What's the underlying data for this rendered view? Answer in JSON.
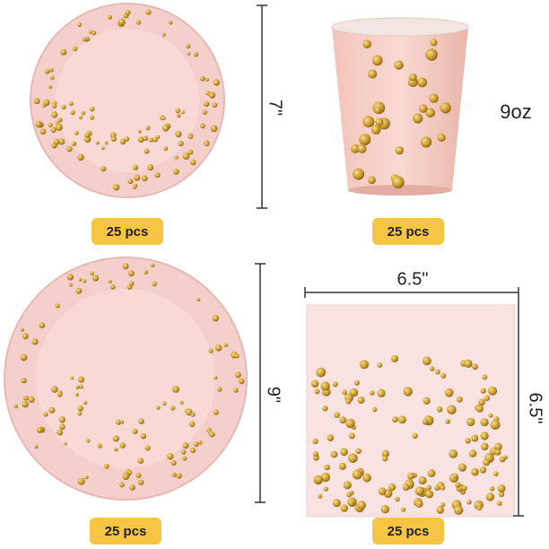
{
  "small_plate": {
    "size": "7\"",
    "count": "25 pcs"
  },
  "cup": {
    "size": "9oz",
    "count": "25 pcs"
  },
  "large_plate": {
    "size": "9\"",
    "count": "25 pcs"
  },
  "napkin": {
    "width": "6.5\"",
    "height": "6.5\"",
    "count": "25 pcs"
  }
}
